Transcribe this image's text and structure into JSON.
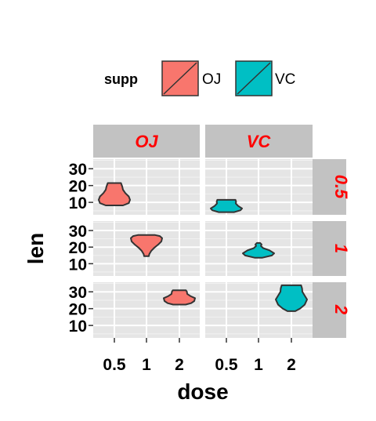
{
  "colors": {
    "panel_bg": "#e5e5e5",
    "grid_major": "#ffffff",
    "grid_minor": "#f2f2f2",
    "strip_bg": "#c2c2c2",
    "strip_text": "#ff0000",
    "outline": "#333333"
  },
  "chart_data": {
    "type": "violin",
    "x_variable": "dose",
    "y_variable": "len",
    "fill_variable": "supp",
    "xlabel": "dose",
    "ylabel": "len",
    "x_categories": [
      "0.5",
      "1",
      "2"
    ],
    "x_tick_labels": [
      "0.5",
      "1",
      "2"
    ],
    "y_ticks": [
      10,
      20,
      30
    ],
    "y_tick_labels": [
      "10",
      "20",
      "30"
    ],
    "ylim": [
      2.6,
      35.7
    ],
    "facet_columns": [
      "OJ",
      "VC"
    ],
    "facet_rows": [
      "0.5",
      "1",
      "2"
    ],
    "grid": true,
    "legend": {
      "title": "supp",
      "position": "top",
      "entries": [
        {
          "label": "OJ",
          "color": "#f8766d"
        },
        {
          "label": "VC",
          "color": "#00bfc4"
        }
      ]
    },
    "series": [
      {
        "name": "OJ",
        "color": "#f8766d",
        "violins": [
          {
            "panel_col": 0,
            "panel_row": 0,
            "dose": "0.5",
            "min": 8.2,
            "max": 21.5
          },
          {
            "panel_col": 0,
            "panel_row": 1,
            "dose": "1",
            "min": 14.5,
            "max": 27.3
          },
          {
            "panel_col": 0,
            "panel_row": 2,
            "dose": "2",
            "min": 22.4,
            "max": 30.9
          }
        ]
      },
      {
        "name": "VC",
        "color": "#00bfc4",
        "violins": [
          {
            "panel_col": 1,
            "panel_row": 0,
            "dose": "0.5",
            "min": 4.2,
            "max": 11.5
          },
          {
            "panel_col": 1,
            "panel_row": 1,
            "dose": "1",
            "min": 13.6,
            "max": 22.5
          },
          {
            "panel_col": 1,
            "panel_row": 2,
            "dose": "2",
            "min": 18.5,
            "max": 33.9
          }
        ]
      }
    ]
  }
}
